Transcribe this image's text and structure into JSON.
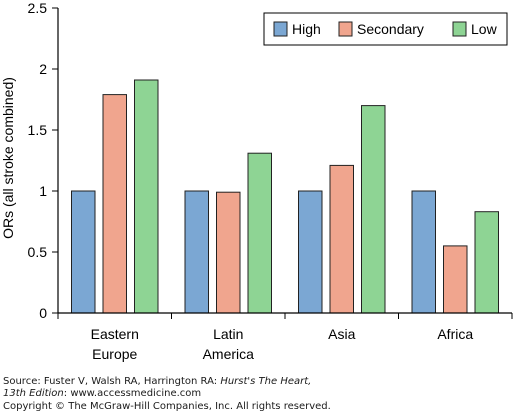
{
  "chart_data": {
    "type": "bar",
    "title": "",
    "xlabel": "",
    "ylabel": "ORs (all stroke combined)",
    "ylim": [
      0,
      2.5
    ],
    "yticks": [
      "0",
      "0.5",
      "1",
      "1.5",
      "2",
      "2.5"
    ],
    "ytick_values": [
      0,
      0.5,
      1,
      1.5,
      2,
      2.5
    ],
    "grid": false,
    "legend_position": "top-right",
    "categories": [
      [
        "Eastern",
        "Europe"
      ],
      [
        "Latin",
        "America"
      ],
      [
        "Asia"
      ],
      [
        "Africa"
      ]
    ],
    "series": [
      {
        "name": "High",
        "color": "#7ba7d3",
        "values": [
          1.0,
          1.0,
          1.0,
          1.0
        ]
      },
      {
        "name": "Secondary",
        "color": "#f0a58e",
        "values": [
          1.79,
          0.99,
          1.21,
          0.55
        ]
      },
      {
        "name": "Low",
        "color": "#8ed494",
        "values": [
          1.91,
          1.31,
          1.7,
          0.83
        ]
      }
    ]
  },
  "source": {
    "line1_prefix": "Source: Fuster V, Walsh RA, Harrington RA: ",
    "line1_title": "Hurst's The Heart,",
    "line2_title": "13th Edition",
    "line2_suffix": ": www.accessmedicine.com",
    "line3": "Copyright © The McGraw-Hill Companies, Inc. All rights reserved."
  }
}
